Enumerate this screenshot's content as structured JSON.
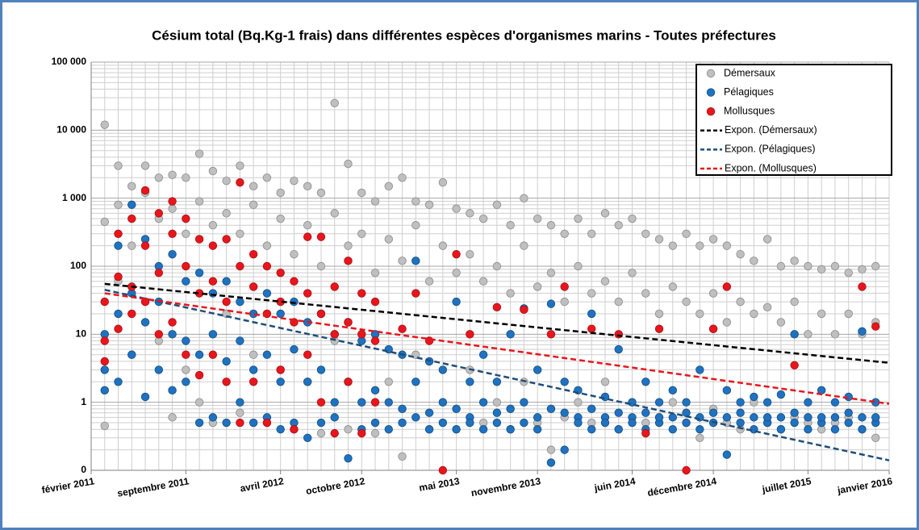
{
  "chart_data": {
    "type": "scatter",
    "title": "Césium total (Bq.Kg-1 frais) dans différentes espèces d'organismes marins - Toutes préfectures",
    "log_y": true,
    "grid": true,
    "legend": "top-right",
    "xlim": [
      "2011-02",
      "2016-01"
    ],
    "xticks": [
      {
        "value": "2011-02",
        "label": "février 2011"
      },
      {
        "value": "2011-09",
        "label": "septembre 2011"
      },
      {
        "value": "2012-04",
        "label": "avril 2012"
      },
      {
        "value": "2012-10",
        "label": "octobre 2012"
      },
      {
        "value": "2013-05",
        "label": "mai 2013"
      },
      {
        "value": "2013-11",
        "label": "novembre 2013"
      },
      {
        "value": "2014-06",
        "label": "juin 2014"
      },
      {
        "value": "2014-12",
        "label": "décembre 2014"
      },
      {
        "value": "2015-07",
        "label": "juillet 2015"
      },
      {
        "value": "2016-01",
        "label": "janvier 2016"
      }
    ],
    "ylim": [
      0.1,
      100000
    ],
    "yticks": [
      {
        "value": 0.1,
        "label": "0"
      },
      1,
      10,
      100,
      {
        "value": 1000,
        "label": "1 000"
      },
      {
        "value": 10000,
        "label": "10 000"
      },
      {
        "value": 100000,
        "label": "100 000"
      }
    ],
    "series": [
      {
        "name": "Démersaux",
        "kind": "markers",
        "color": "#bfbfbf",
        "x": [
          "2011-03",
          "2011-03",
          "2011-03",
          "2011-04",
          "2011-04",
          "2011-04",
          "2011-05",
          "2011-05",
          "2011-05",
          "2011-06",
          "2011-06",
          "2011-06",
          "2011-07",
          "2011-07",
          "2011-07",
          "2011-08",
          "2011-08",
          "2011-08",
          "2011-09",
          "2011-09",
          "2011-09",
          "2011-10",
          "2011-10",
          "2011-10",
          "2011-11",
          "2011-11",
          "2011-11",
          "2011-12",
          "2011-12",
          "2011-12",
          "2012-01",
          "2012-01",
          "2012-01",
          "2012-02",
          "2012-02",
          "2012-02",
          "2012-03",
          "2012-03",
          "2012-03",
          "2012-04",
          "2012-04",
          "2012-04",
          "2012-05",
          "2012-05",
          "2012-05",
          "2012-06",
          "2012-06",
          "2012-06",
          "2012-07",
          "2012-07",
          "2012-07",
          "2012-08",
          "2012-08",
          "2012-08",
          "2012-09",
          "2012-09",
          "2012-09",
          "2012-10",
          "2012-10",
          "2012-10",
          "2012-11",
          "2012-11",
          "2012-11",
          "2012-12",
          "2012-12",
          "2012-12",
          "2013-01",
          "2013-01",
          "2013-01",
          "2013-02",
          "2013-02",
          "2013-02",
          "2013-03",
          "2013-03",
          "2013-03",
          "2013-04",
          "2013-04",
          "2013-04",
          "2013-05",
          "2013-05",
          "2013-05",
          "2013-06",
          "2013-06",
          "2013-06",
          "2013-07",
          "2013-07",
          "2013-07",
          "2013-08",
          "2013-08",
          "2013-08",
          "2013-09",
          "2013-09",
          "2013-09",
          "2013-10",
          "2013-10",
          "2013-10",
          "2013-11",
          "2013-11",
          "2013-11",
          "2013-12",
          "2013-12",
          "2013-12",
          "2014-01",
          "2014-01",
          "2014-01",
          "2014-02",
          "2014-02",
          "2014-02",
          "2014-03",
          "2014-03",
          "2014-03",
          "2014-04",
          "2014-04",
          "2014-04",
          "2014-05",
          "2014-05",
          "2014-05",
          "2014-06",
          "2014-06",
          "2014-06",
          "2014-07",
          "2014-07",
          "2014-07",
          "2014-08",
          "2014-08",
          "2014-08",
          "2014-09",
          "2014-09",
          "2014-09",
          "2014-10",
          "2014-10",
          "2014-10",
          "2014-11",
          "2014-11",
          "2014-11",
          "2014-12",
          "2014-12",
          "2014-12",
          "2015-01",
          "2015-01",
          "2015-01",
          "2015-02",
          "2015-02",
          "2015-02",
          "2015-03",
          "2015-03",
          "2015-03",
          "2015-04",
          "2015-04",
          "2015-04",
          "2015-05",
          "2015-05",
          "2015-05",
          "2015-06",
          "2015-06",
          "2015-06",
          "2015-07",
          "2015-07",
          "2015-07",
          "2015-08",
          "2015-08",
          "2015-08",
          "2015-09",
          "2015-09",
          "2015-09",
          "2015-10",
          "2015-10",
          "2015-10",
          "2015-11",
          "2015-11",
          "2015-11",
          "2015-12",
          "2015-12",
          "2015-12"
        ],
        "values": [
          12000,
          450,
          0.45,
          3000,
          800,
          60,
          1500,
          200,
          5,
          3000,
          1200,
          30,
          2000,
          500,
          8,
          2200,
          700,
          0.6,
          2000,
          300,
          3,
          4500,
          900,
          1,
          2500,
          400,
          0.5,
          1800,
          600,
          20,
          3000,
          300,
          0.7,
          1500,
          800,
          5,
          2000,
          200,
          0.5,
          1200,
          500,
          3,
          1800,
          150,
          0.4,
          1500,
          400,
          2,
          1200,
          100,
          0.35,
          25000,
          600,
          8,
          3200,
          200,
          0.4,
          1200,
          300,
          1,
          900,
          80,
          0.35,
          1500,
          250,
          2,
          2000,
          120,
          0.16,
          900,
          400,
          5,
          800,
          60,
          0.4,
          1700,
          200,
          1,
          700,
          80,
          0.4,
          600,
          150,
          3,
          500,
          60,
          0.5,
          800,
          100,
          1,
          400,
          40,
          0.4,
          1000,
          200,
          2,
          500,
          50,
          0.5,
          400,
          80,
          0.2,
          300,
          30,
          0.6,
          500,
          100,
          1,
          300,
          40,
          0.5,
          600,
          60,
          2,
          400,
          30,
          0.4,
          500,
          80,
          1,
          300,
          40,
          0.5,
          250,
          20,
          0.6,
          200,
          50,
          1,
          300,
          30,
          0.5,
          200,
          20,
          0.3,
          250,
          40,
          0.8,
          200,
          15,
          0.5,
          150,
          30,
          0.4,
          120,
          20,
          1,
          250,
          25,
          0.5,
          100,
          15,
          0.4,
          120,
          30,
          0.6,
          100,
          10,
          0.5,
          90,
          20,
          0.4,
          100,
          10,
          0.5,
          80,
          20,
          0.6,
          90,
          10,
          0.4,
          100,
          15,
          0.3
        ]
      },
      {
        "name": "Pélagiques",
        "kind": "markers",
        "color": "#1f72c0",
        "x": [
          "2011-03",
          "2011-03",
          "2011-03",
          "2011-04",
          "2011-04",
          "2011-04",
          "2011-05",
          "2011-05",
          "2011-05",
          "2011-06",
          "2011-06",
          "2011-06",
          "2011-07",
          "2011-07",
          "2011-07",
          "2011-08",
          "2011-08",
          "2011-08",
          "2011-09",
          "2011-09",
          "2011-09",
          "2011-10",
          "2011-10",
          "2011-10",
          "2011-11",
          "2011-11",
          "2011-11",
          "2011-12",
          "2011-12",
          "2011-12",
          "2012-01",
          "2012-01",
          "2012-01",
          "2012-02",
          "2012-02",
          "2012-02",
          "2012-03",
          "2012-03",
          "2012-03",
          "2012-04",
          "2012-04",
          "2012-04",
          "2012-05",
          "2012-05",
          "2012-05",
          "2012-06",
          "2012-06",
          "2012-06",
          "2012-07",
          "2012-07",
          "2012-07",
          "2012-08",
          "2012-08",
          "2012-08",
          "2012-09",
          "2012-09",
          "2012-09",
          "2012-10",
          "2012-10",
          "2012-10",
          "2012-11",
          "2012-11",
          "2012-11",
          "2012-12",
          "2012-12",
          "2012-12",
          "2013-01",
          "2013-01",
          "2013-01",
          "2013-02",
          "2013-02",
          "2013-02",
          "2013-03",
          "2013-03",
          "2013-03",
          "2013-04",
          "2013-04",
          "2013-04",
          "2013-05",
          "2013-05",
          "2013-05",
          "2013-06",
          "2013-06",
          "2013-06",
          "2013-07",
          "2013-07",
          "2013-07",
          "2013-08",
          "2013-08",
          "2013-08",
          "2013-09",
          "2013-09",
          "2013-09",
          "2013-10",
          "2013-10",
          "2013-10",
          "2013-11",
          "2013-11",
          "2013-11",
          "2013-12",
          "2013-12",
          "2013-12",
          "2014-01",
          "2014-01",
          "2014-01",
          "2014-02",
          "2014-02",
          "2014-02",
          "2014-03",
          "2014-03",
          "2014-03",
          "2014-04",
          "2014-04",
          "2014-04",
          "2014-05",
          "2014-05",
          "2014-05",
          "2014-06",
          "2014-06",
          "2014-06",
          "2014-07",
          "2014-07",
          "2014-07",
          "2014-08",
          "2014-08",
          "2014-08",
          "2014-09",
          "2014-09",
          "2014-09",
          "2014-10",
          "2014-10",
          "2014-10",
          "2014-11",
          "2014-11",
          "2014-11",
          "2014-12",
          "2014-12",
          "2014-12",
          "2015-01",
          "2015-01",
          "2015-01",
          "2015-02",
          "2015-02",
          "2015-02",
          "2015-03",
          "2015-03",
          "2015-03",
          "2015-04",
          "2015-04",
          "2015-04",
          "2015-05",
          "2015-05",
          "2015-05",
          "2015-06",
          "2015-06",
          "2015-06",
          "2015-07",
          "2015-07",
          "2015-07",
          "2015-08",
          "2015-08",
          "2015-08",
          "2015-09",
          "2015-09",
          "2015-09",
          "2015-10",
          "2015-10",
          "2015-10",
          "2015-11",
          "2015-11",
          "2015-11",
          "2015-12",
          "2015-12",
          "2015-12"
        ],
        "values": [
          10,
          3,
          1.5,
          200,
          20,
          2,
          800,
          40,
          5,
          250,
          15,
          1.2,
          100,
          30,
          3,
          150,
          10,
          1.5,
          60,
          8,
          2,
          80,
          5,
          0.5,
          40,
          10,
          0.6,
          60,
          4,
          0.5,
          30,
          8,
          1,
          20,
          3,
          0.5,
          40,
          5,
          0.6,
          20,
          2,
          0.4,
          30,
          6,
          0.5,
          15,
          2,
          0.3,
          20,
          3,
          0.5,
          10,
          1,
          0.6,
          15,
          2,
          0.15,
          8,
          1,
          0.4,
          10,
          1.5,
          0.5,
          6,
          1,
          0.4,
          5,
          0.8,
          0.5,
          120,
          2,
          0.6,
          4,
          0.7,
          0.4,
          3,
          1,
          0.5,
          30,
          0.8,
          0.4,
          2,
          0.6,
          0.5,
          5,
          1,
          0.4,
          2,
          0.7,
          0.5,
          10,
          0.8,
          0.4,
          24,
          1,
          0.5,
          3,
          0.6,
          0.4,
          28,
          0.8,
          0.13,
          2,
          0.7,
          0.2,
          1.5,
          0.6,
          0.5,
          20,
          0.8,
          0.4,
          1.2,
          0.6,
          0.5,
          6,
          0.7,
          0.4,
          1,
          0.6,
          0.5,
          2,
          0.7,
          0.4,
          1,
          0.5,
          0.6,
          1.5,
          0.6,
          0.4,
          1,
          0.5,
          0.7,
          3,
          0.6,
          0.4,
          12,
          0.5,
          0.7,
          1.5,
          0.6,
          0.17,
          1,
          0.5,
          0.7,
          1.2,
          0.6,
          0.4,
          1,
          0.5,
          0.6,
          1.3,
          0.6,
          0.4,
          10,
          0.5,
          0.7,
          1,
          0.6,
          0.4,
          1.5,
          0.5,
          0.6,
          1,
          0.6,
          0.4,
          1.2,
          0.5,
          0.7,
          11,
          0.6,
          0.4,
          1,
          0.5,
          0.6
        ]
      },
      {
        "name": "Mollusques",
        "kind": "markers",
        "color": "#e8161c",
        "x": [
          "2011-03",
          "2011-03",
          "2011-03",
          "2011-04",
          "2011-04",
          "2011-04",
          "2011-05",
          "2011-05",
          "2011-05",
          "2011-06",
          "2011-06",
          "2011-06",
          "2011-07",
          "2011-07",
          "2011-07",
          "2011-08",
          "2011-08",
          "2011-08",
          "2011-09",
          "2011-09",
          "2011-09",
          "2011-10",
          "2011-10",
          "2011-10",
          "2011-11",
          "2011-11",
          "2011-11",
          "2011-12",
          "2011-12",
          "2011-12",
          "2012-01",
          "2012-01",
          "2012-01",
          "2012-02",
          "2012-02",
          "2012-02",
          "2012-03",
          "2012-03",
          "2012-03",
          "2012-04",
          "2012-04",
          "2012-04",
          "2012-05",
          "2012-05",
          "2012-05",
          "2012-06",
          "2012-06",
          "2012-06",
          "2012-07",
          "2012-07",
          "2012-07",
          "2012-08",
          "2012-08",
          "2012-08",
          "2012-09",
          "2012-09",
          "2012-09",
          "2012-10",
          "2012-10",
          "2012-10",
          "2012-11",
          "2012-11",
          "2012-11",
          "2013-01",
          "2013-02",
          "2013-03",
          "2013-04",
          "2013-05",
          "2013-06",
          "2013-08",
          "2013-10",
          "2013-12",
          "2014-01",
          "2014-03",
          "2014-05",
          "2014-07",
          "2014-08",
          "2014-10",
          "2014-12",
          "2015-01",
          "2015-06",
          "2015-11",
          "2015-12"
        ],
        "values": [
          8,
          30,
          4,
          70,
          300,
          12,
          500,
          50,
          20,
          1300,
          200,
          30,
          600,
          80,
          10,
          900,
          300,
          15,
          500,
          100,
          5,
          250,
          40,
          2.5,
          200,
          60,
          5,
          250,
          30,
          2,
          1700,
          100,
          0.5,
          150,
          50,
          2,
          100,
          20,
          0.5,
          80,
          30,
          3,
          60,
          15,
          0.4,
          270,
          40,
          5,
          270,
          20,
          1,
          50,
          10,
          0.35,
          120,
          15,
          2,
          40,
          10,
          0.35,
          30,
          8,
          1,
          12,
          40,
          8,
          0.1,
          150,
          10,
          25,
          23,
          10,
          50,
          12,
          10,
          0.35,
          12,
          0.1,
          12,
          50,
          3.5,
          50,
          13
        ]
      },
      {
        "name": "Expon. (Démersaux)",
        "kind": "trend",
        "color": "#000000",
        "x": [
          "2011-03",
          "2016-01"
        ],
        "values": [
          55,
          3.8
        ]
      },
      {
        "name": "Expon. (Pélagiques)",
        "kind": "trend",
        "color": "#1f4e79",
        "x": [
          "2011-03",
          "2016-01"
        ],
        "values": [
          45,
          0.14
        ]
      },
      {
        "name": "Expon. (Mollusques)",
        "kind": "trend",
        "color": "#e8161c",
        "x": [
          "2011-03",
          "2016-01"
        ],
        "values": [
          40,
          0.95
        ]
      }
    ]
  }
}
